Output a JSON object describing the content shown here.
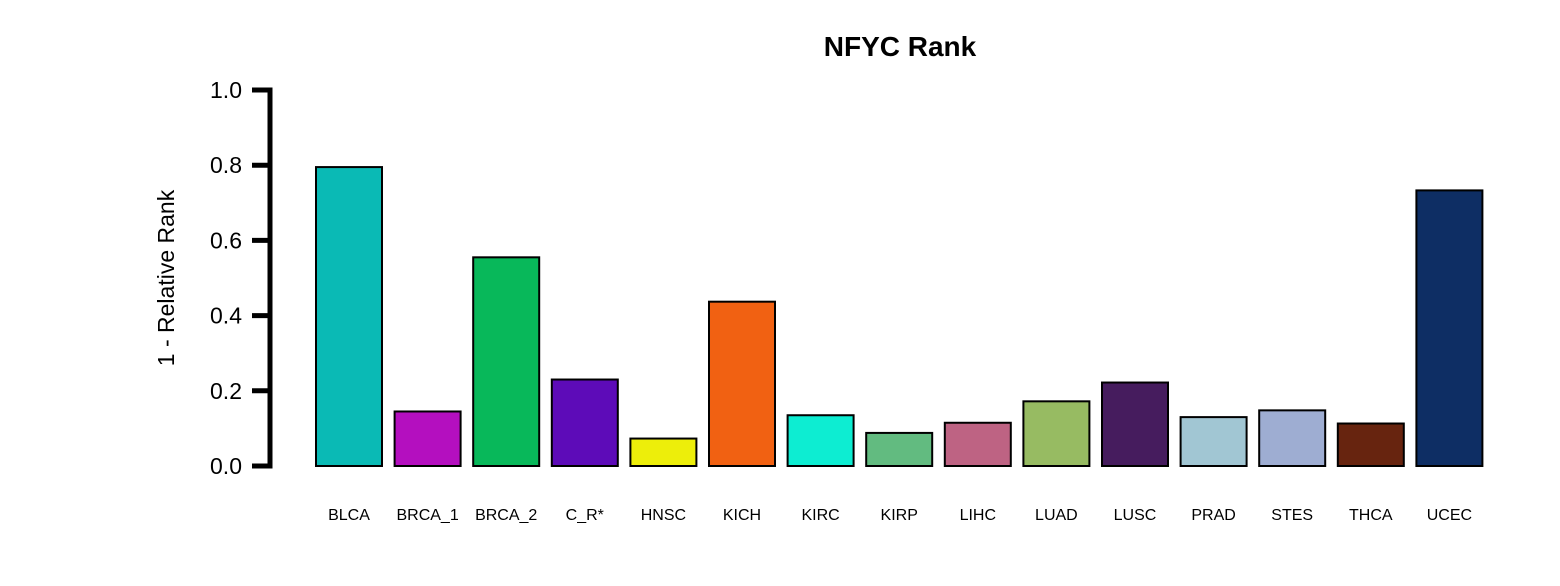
{
  "chart_data": {
    "type": "bar",
    "title": "NFYC Rank",
    "xlabel": "",
    "ylabel": "1 - Relative Rank",
    "ylim": [
      0,
      1
    ],
    "yticks": [
      "0.0",
      "0.2",
      "0.4",
      "0.6",
      "0.8",
      "1.0"
    ],
    "ytick_values": [
      0,
      0.2,
      0.4,
      0.6,
      0.8,
      1.0
    ],
    "grid": false,
    "categories": [
      "BLCA",
      "BRCA_1",
      "BRCA_2",
      "C_R*",
      "HNSC",
      "KICH",
      "KIRC",
      "KIRP",
      "LIHC",
      "LUAD",
      "LUSC",
      "PRAD",
      "STES",
      "THCA",
      "UCEC"
    ],
    "values": [
      0.795,
      0.145,
      0.555,
      0.23,
      0.073,
      0.437,
      0.135,
      0.088,
      0.115,
      0.172,
      0.222,
      0.13,
      0.148,
      0.113,
      0.733
    ],
    "colors": [
      "#0ABAB5",
      "#B40FBF",
      "#08B85A",
      "#5D0BB8",
      "#EDEE0A",
      "#F16112",
      "#0DEDD2",
      "#62BB80",
      "#BE6383",
      "#97BB62",
      "#461C5E",
      "#A1C6D3",
      "#9EADD2",
      "#67240F",
      "#0E2E64"
    ],
    "bar_outline": "#000000"
  }
}
